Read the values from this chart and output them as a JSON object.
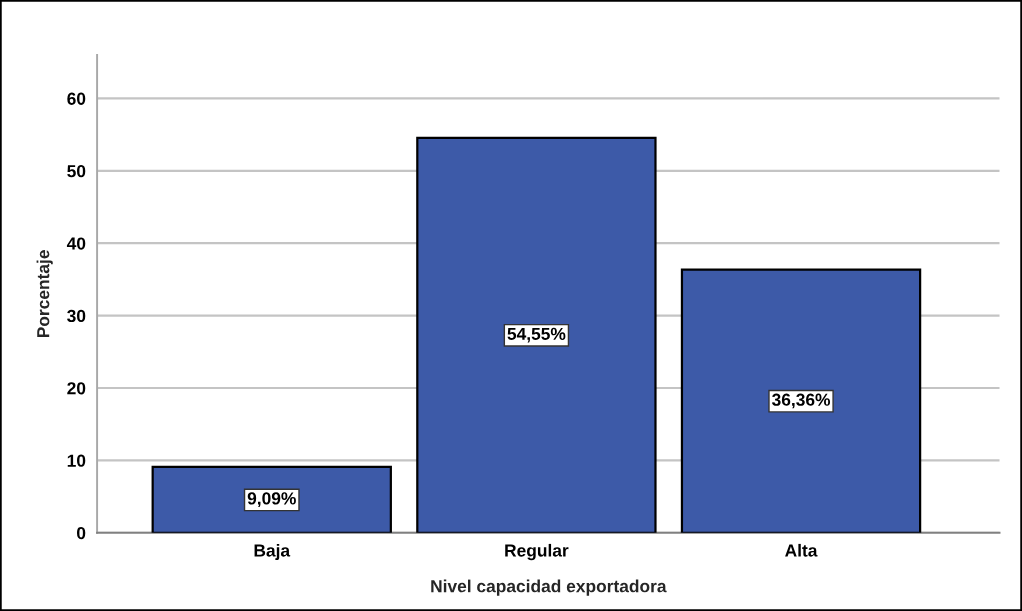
{
  "chart_data": {
    "type": "bar",
    "categories": [
      "Baja",
      "Regular",
      "Alta"
    ],
    "values": [
      9.09,
      54.55,
      36.36
    ],
    "value_labels": [
      "9,09%",
      "54,55%",
      "36,36%"
    ],
    "color": "#3d5aa8",
    "xlabel": "Nivel capacidad exportadora",
    "ylabel": "Porcentaje",
    "ylim": [
      0,
      66
    ],
    "yticks": [
      0,
      10,
      20,
      30,
      40,
      50,
      60
    ],
    "grid": "y"
  }
}
